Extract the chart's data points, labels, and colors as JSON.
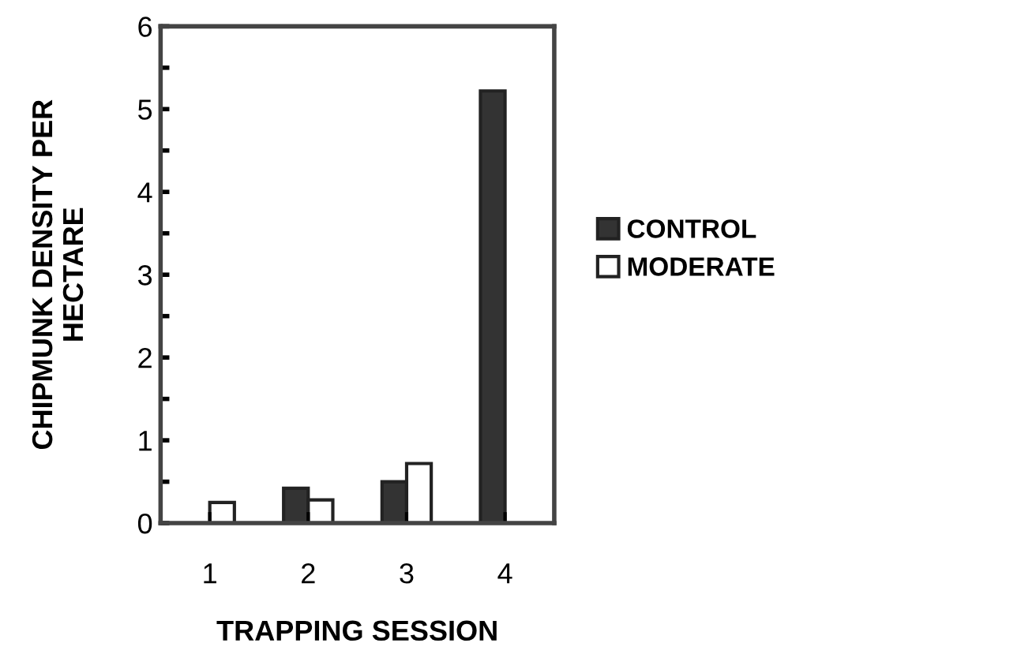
{
  "chart_data": {
    "type": "bar",
    "xlabel": "TRAPPING SESSION",
    "ylabel": "CHIPMUNK DENSITY PER\nHECTARE",
    "categories": [
      "1",
      "2",
      "3",
      "4"
    ],
    "series": [
      {
        "name": "CONTROL",
        "color": "#333333",
        "values": [
          null,
          0.42,
          0.5,
          5.22
        ]
      },
      {
        "name": "MODERATE",
        "color": "#ffffff",
        "values": [
          0.25,
          0.28,
          0.72,
          null
        ]
      }
    ],
    "ylim": [
      0,
      6
    ],
    "yticks": [
      0,
      1,
      2,
      3,
      4,
      5,
      6
    ],
    "grid": false,
    "legend": "right"
  }
}
